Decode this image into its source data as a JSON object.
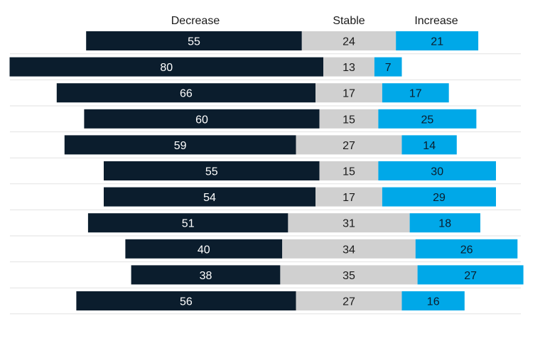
{
  "chart_data": {
    "type": "bar",
    "stacked": true,
    "orientation": "horizontal",
    "layout_style": "diverging",
    "legend_position": "top",
    "series": [
      {
        "name": "Decrease",
        "color": "#0b1d2d",
        "label_color": "#ffffff",
        "values": [
          55,
          80,
          66,
          60,
          59,
          55,
          54,
          51,
          40,
          38,
          56
        ]
      },
      {
        "name": "Stable",
        "color": "#d0d0d0",
        "label_color": "#1a1a1a",
        "values": [
          24,
          13,
          17,
          15,
          27,
          15,
          17,
          31,
          34,
          35,
          27
        ]
      },
      {
        "name": "Increase",
        "color": "#00a8e8",
        "label_color": "#0b1d2d",
        "values": [
          21,
          7,
          17,
          25,
          14,
          30,
          29,
          18,
          26,
          27,
          16
        ]
      }
    ]
  }
}
